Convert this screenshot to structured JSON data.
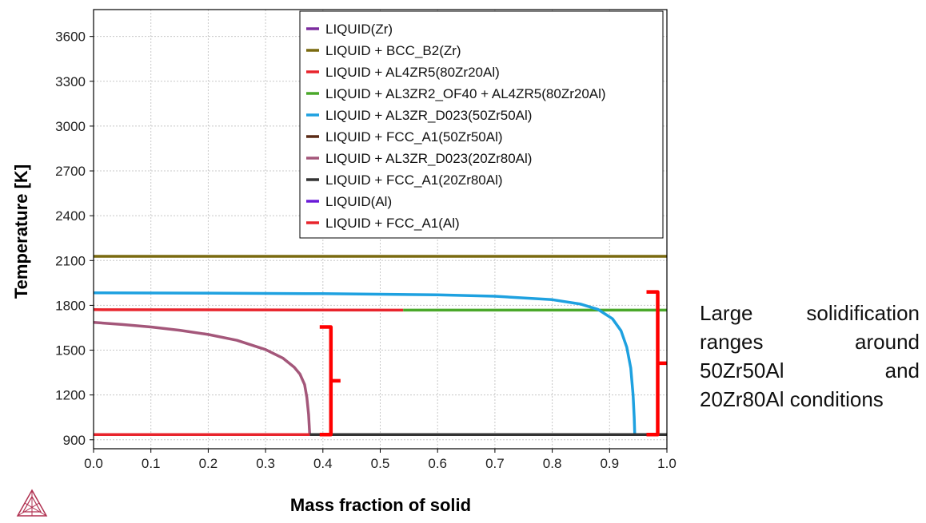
{
  "chart_data": {
    "type": "line",
    "xlabel": "Mass fraction of solid",
    "ylabel": "Temperature [K]",
    "xlim": [
      0.0,
      1.0
    ],
    "ylim": [
      840,
      3780
    ],
    "xticks": [
      "0.0",
      "0.1",
      "0.2",
      "0.3",
      "0.4",
      "0.5",
      "0.6",
      "0.7",
      "0.8",
      "0.9",
      "1.0"
    ],
    "yticks": [
      "900",
      "1200",
      "1500",
      "1800",
      "2100",
      "2400",
      "2700",
      "3000",
      "3300",
      "3600"
    ],
    "grid": true,
    "legend_position": "top-right",
    "series": [
      {
        "name": "LIQUID(Zr)",
        "color": "#7b2c9e",
        "points": []
      },
      {
        "name": "LIQUID + BCC_B2(Zr)",
        "color": "#7a6a10",
        "points": [
          [
            0.0,
            2128
          ],
          [
            1.0,
            2128
          ]
        ]
      },
      {
        "name": "LIQUID + AL4ZR5(80Zr20Al)",
        "color": "#e8242c",
        "points": [
          [
            0.0,
            1771
          ],
          [
            0.54,
            1768
          ]
        ]
      },
      {
        "name": "LIQUID + AL3ZR2_OF40 + AL4ZR5(80Zr20Al)",
        "color": "#4aa82a",
        "points": [
          [
            0.54,
            1768
          ],
          [
            1.0,
            1768
          ]
        ]
      },
      {
        "name": "LIQUID + AL3ZR_D023(50Zr50Al)",
        "color": "#1ea1e0",
        "points": [
          [
            0.0,
            1884
          ],
          [
            0.2,
            1882
          ],
          [
            0.4,
            1878
          ],
          [
            0.6,
            1870
          ],
          [
            0.7,
            1861
          ],
          [
            0.8,
            1838
          ],
          [
            0.85,
            1808
          ],
          [
            0.88,
            1772
          ],
          [
            0.905,
            1710
          ],
          [
            0.92,
            1630
          ],
          [
            0.93,
            1520
          ],
          [
            0.937,
            1380
          ],
          [
            0.941,
            1200
          ],
          [
            0.943,
            1050
          ],
          [
            0.944,
            935
          ]
        ]
      },
      {
        "name": "LIQUID + FCC_A1(50Zr50Al)",
        "color": "#5a2a16",
        "points": [
          [
            0.944,
            935
          ],
          [
            1.0,
            935
          ]
        ]
      },
      {
        "name": "LIQUID + AL3ZR_D023(20Zr80Al)",
        "color": "#a4577a",
        "points": [
          [
            0.0,
            1686
          ],
          [
            0.05,
            1672
          ],
          [
            0.1,
            1655
          ],
          [
            0.15,
            1633
          ],
          [
            0.2,
            1605
          ],
          [
            0.25,
            1566
          ],
          [
            0.3,
            1504
          ],
          [
            0.33,
            1447
          ],
          [
            0.35,
            1386
          ],
          [
            0.36,
            1340
          ],
          [
            0.368,
            1270
          ],
          [
            0.372,
            1185
          ],
          [
            0.375,
            1070
          ],
          [
            0.377,
            935
          ]
        ]
      },
      {
        "name": "LIQUID + FCC_A1(20Zr80Al)",
        "color": "#333333",
        "points": [
          [
            0.377,
            935
          ],
          [
            1.0,
            935
          ]
        ]
      },
      {
        "name": "LIQUID(Al)",
        "color": "#6a1ad8",
        "points": []
      },
      {
        "name": "LIQUID + FCC_A1(Al)",
        "color": "#e8242c",
        "points": [
          [
            0.0,
            935
          ],
          [
            0.377,
            935
          ]
        ]
      }
    ],
    "annotations": [
      {
        "type": "bracket",
        "color": "#ff0000",
        "x": 0.4,
        "y_range": [
          935,
          1655
        ]
      },
      {
        "type": "bracket",
        "color": "#ff0000",
        "x": 0.97,
        "y_range": [
          935,
          1890
        ]
      }
    ]
  },
  "caption": {
    "lines": [
      "Large solidification",
      "ranges around",
      "50Zr50Al and",
      "20Zr80Al conditions"
    ]
  },
  "logo": {
    "icon": "thermo-calc-triangle-logo",
    "color": "#b03050"
  }
}
